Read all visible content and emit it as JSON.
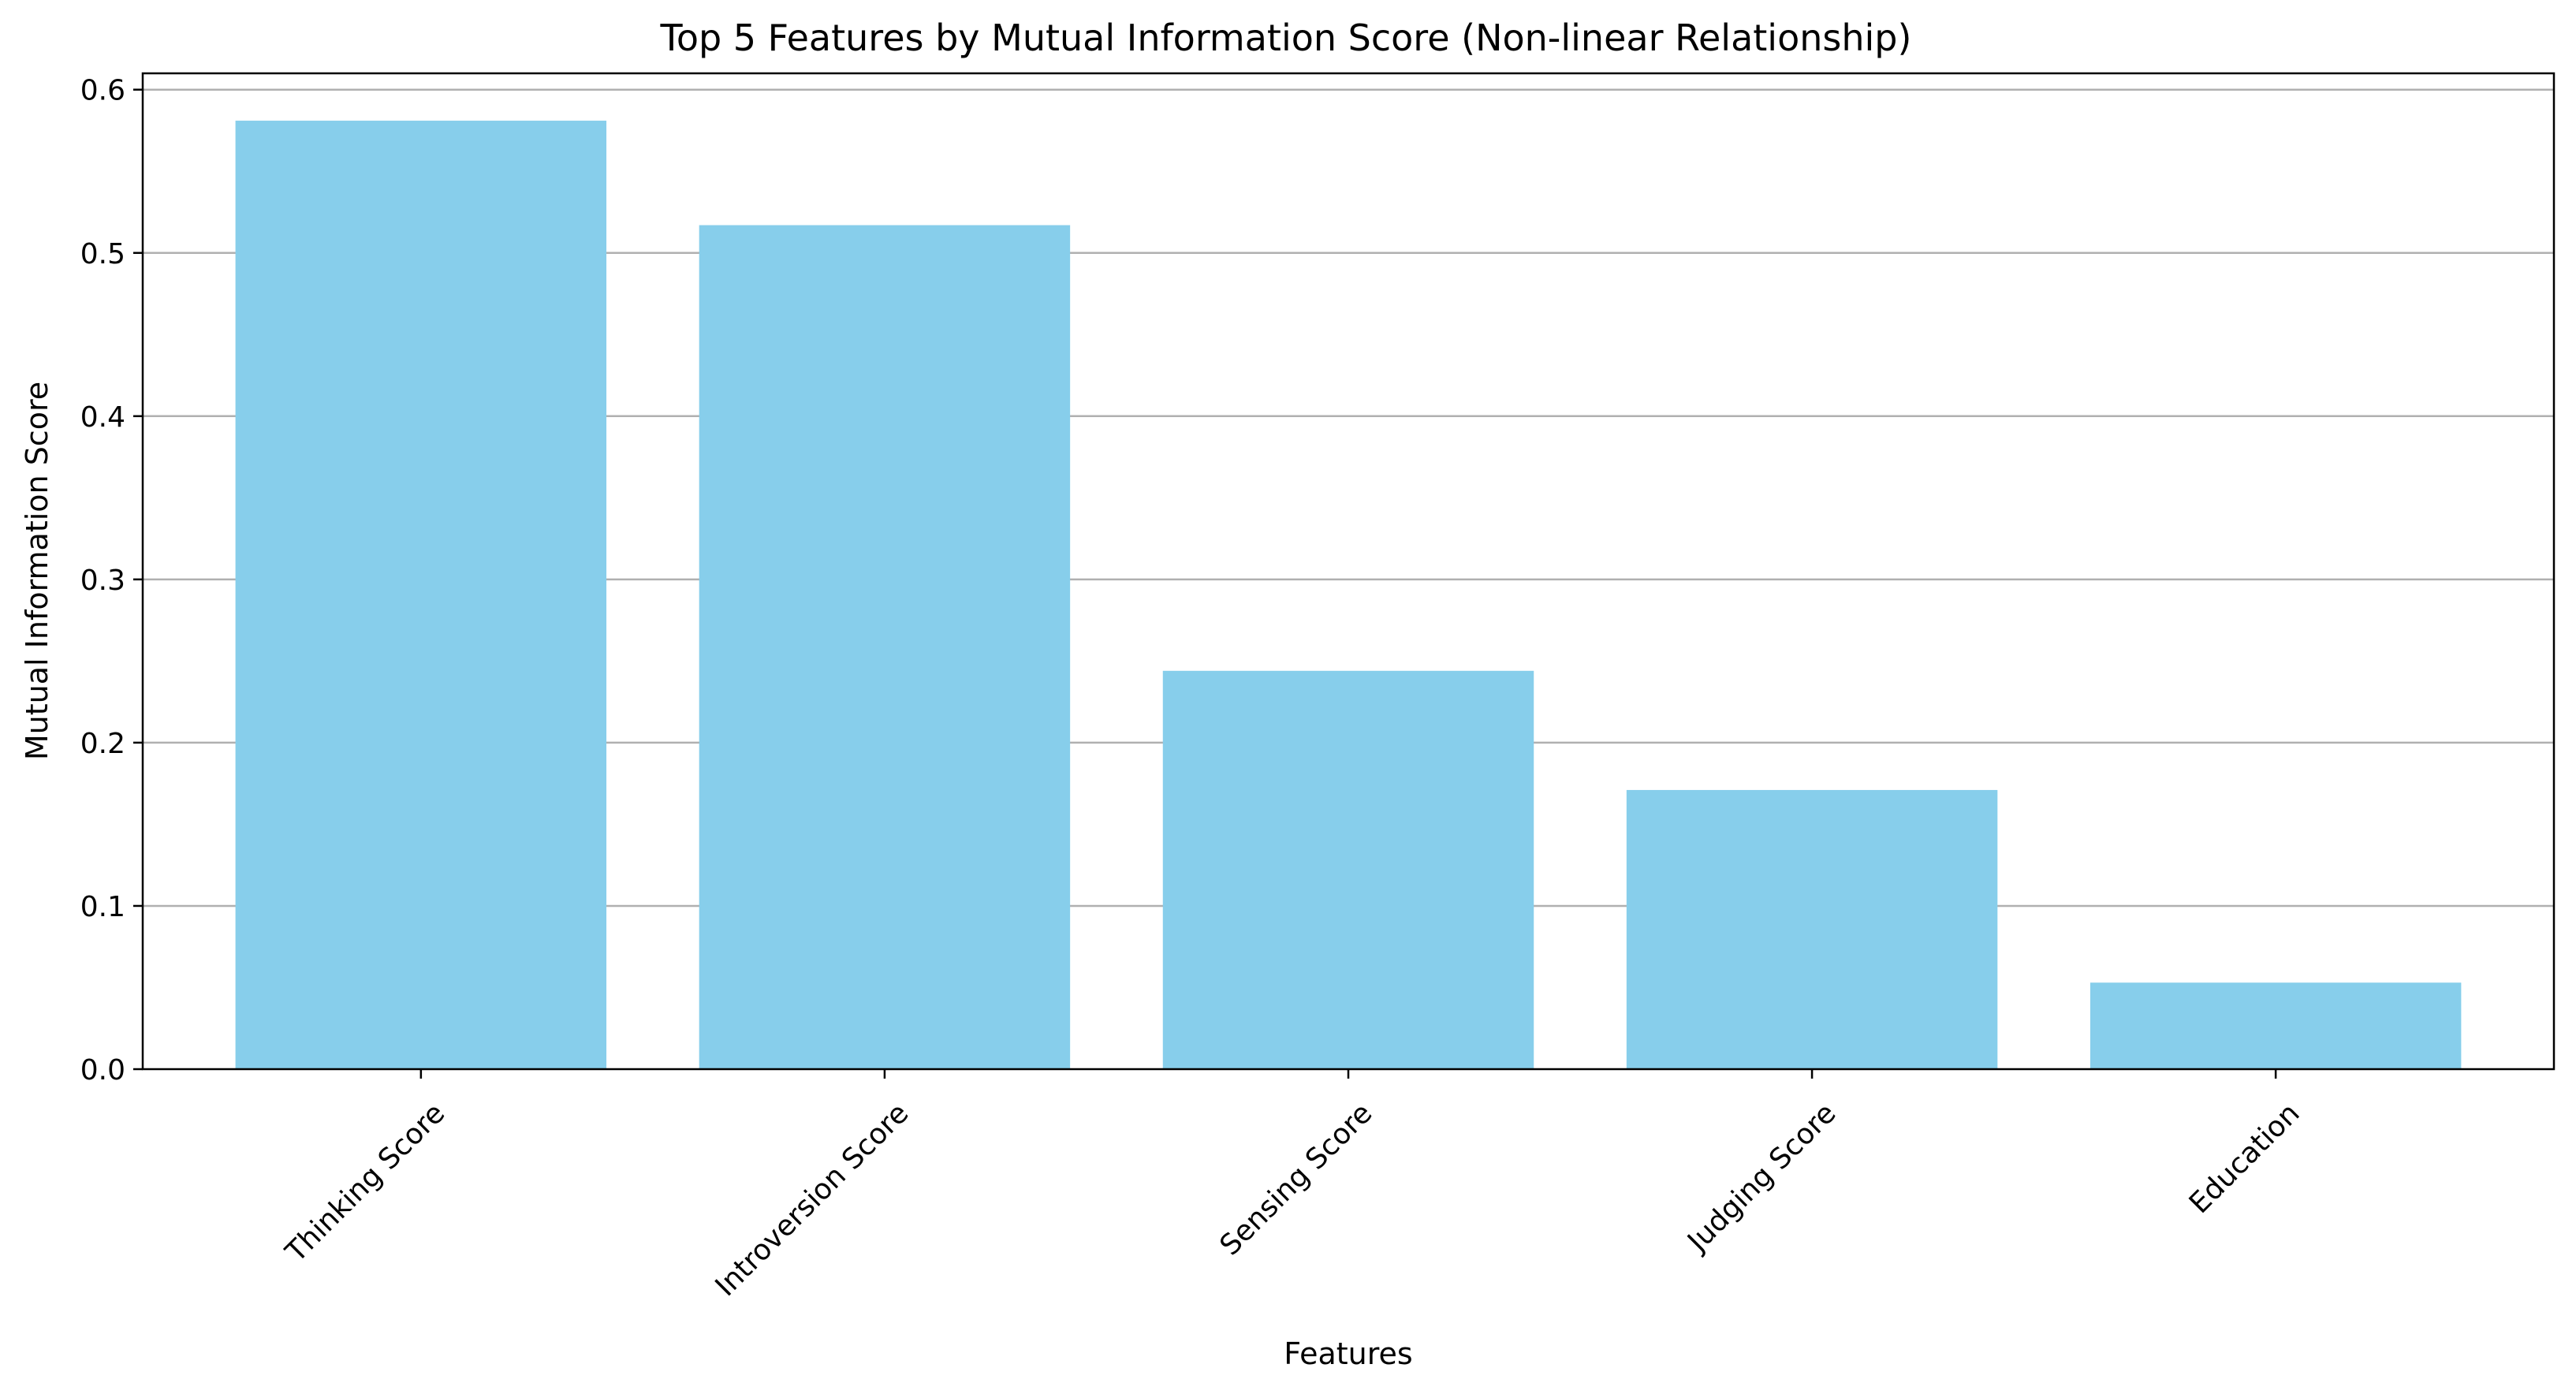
{
  "chart_data": {
    "type": "bar",
    "title": "Top 5 Features by Mutual Information Score (Non-linear Relationship)",
    "xlabel": "Features",
    "ylabel": "Mutual Information Score",
    "categories": [
      "Thinking Score",
      "Introversion Score",
      "Sensing Score",
      "Judging Score",
      "Education"
    ],
    "values": [
      0.581,
      0.517,
      0.244,
      0.171,
      0.053
    ],
    "ylim": [
      0,
      0.61
    ],
    "yticks": [
      0.0,
      0.1,
      0.2,
      0.3,
      0.4,
      0.5,
      0.6
    ],
    "ytick_labels": [
      "0.0",
      "0.1",
      "0.2",
      "0.3",
      "0.4",
      "0.5",
      "0.6"
    ],
    "grid": "y",
    "legend": "none",
    "bar_color": "#87CEEB",
    "xtick_rotation": 45
  }
}
